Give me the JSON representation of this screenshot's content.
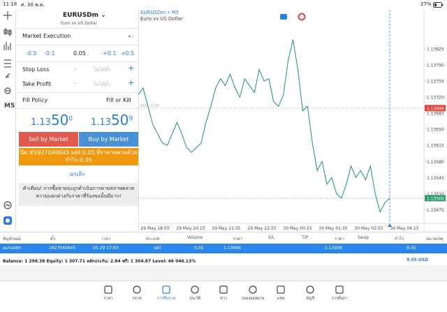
{
  "status": {
    "time": "11:18",
    "date": "ศ. 30 พ.ค.",
    "battery": "27%"
  },
  "toolbar": {
    "timeframe": "M5"
  },
  "order": {
    "symbol": "EURUSDm",
    "description": "Euro vs US Dollar",
    "execution": "Market Execution",
    "volume_steps": [
      "-0.5",
      "-0.1",
      "0.05",
      "+0.1",
      "+0.5"
    ],
    "stop_loss": {
      "label": "Stop Loss",
      "minus": "-",
      "value": "ไม่ได้ตั้ง",
      "plus": "+"
    },
    "take_profit": {
      "label": "Take Profit",
      "minus": "-",
      "value": "ไม่ได้ตั้ง",
      "plus": "+"
    },
    "fill_policy": {
      "label": "Fill Policy",
      "value": "Fill or Kill"
    },
    "bid": {
      "big": "1.13",
      "pips": "50",
      "point": "0"
    },
    "ask": {
      "big": "1.13",
      "pips": "50",
      "point": "9"
    },
    "sell_button": "Sell by Market",
    "buy_button": "Buy by Market",
    "close_button": [
      "ปิด #1927040645 sell 0.05 ที่ราคาตลาดด้วย",
      "กำไร 9.35"
    ],
    "cancel": "ยกเลิก",
    "warning": [
      "คำเตือน! การซื้อขายจะถูกดำเนินการตามสภาพตลาด",
      "ความแตกต่างกับราคาที่ร้องขอนั้นมีมาก!"
    ]
  },
  "chart": {
    "type": "line",
    "title": "EURUSDm • M5",
    "subtitle": "Euro vs US Dollar",
    "color": "#2e9e6a",
    "x_labels": [
      "29 May 18:55",
      "29 May 20:15",
      "29 May 21:35",
      "29 May 22:55",
      "30 May 00:15",
      "30 May 01:35",
      "30 May 02:55",
      "30 May 04:15"
    ],
    "values": [
      1.13725,
      1.1374,
      1.137,
      1.1366,
      1.1364,
      1.1362,
      1.13615,
      1.1364,
      1.13665,
      1.1364,
      1.1361,
      1.136,
      1.1361,
      1.1362,
      1.13665,
      1.137,
      1.1374,
      1.1376,
      1.13745,
      1.1377,
      1.1374,
      1.1372,
      1.1376,
      1.13745,
      1.1373,
      1.1378,
      1.13755,
      1.1376,
      1.1371,
      1.137,
      1.13725,
      1.138,
      1.13845,
      1.1378,
      1.1369,
      1.137,
      1.1362,
      1.1356,
      1.1358,
      1.1353,
      1.13545,
      1.1351,
      1.135,
      1.1353,
      1.1357,
      1.13545,
      1.1356,
      1.1354,
      1.1357,
      1.1351,
      1.1347,
      1.1349,
      1.135
    ],
    "ylim": [
      1.1343,
      1.1391
    ],
    "yticks": [
      {
        "value": 1.13475,
        "label": "1.13475"
      },
      {
        "value": 1.1351,
        "label": "1.13510"
      },
      {
        "value": 1.13545,
        "label": "1.13545"
      },
      {
        "value": 1.1358,
        "label": "1.13580"
      },
      {
        "value": 1.13615,
        "label": "1.13615"
      },
      {
        "value": 1.1365,
        "label": "1.13650"
      },
      {
        "value": 1.13685,
        "label": "1.13685"
      },
      {
        "value": 1.1372,
        "label": "1.13720"
      },
      {
        "value": 1.13755,
        "label": "1.13755"
      },
      {
        "value": 1.1379,
        "label": "1.13790"
      },
      {
        "value": 1.13825,
        "label": "1.13825"
      }
    ],
    "sell_line": {
      "text": "SELL 0.05",
      "value": 1.13696,
      "color": "#e0443a"
    },
    "current_price": {
      "value": 1.135,
      "label": "1.13500",
      "color": "#2e9e6a"
    }
  },
  "table": {
    "headers": [
      "สัญลักษณ์",
      "ตั๋ว",
      "เวลา",
      "ประเภท",
      "Volume",
      "ราคา",
      "S/L",
      "T/P",
      "ราคา",
      "Swap",
      "กำไร",
      "หมายเหตุ"
    ],
    "row": {
      "symbol": "eurusdm",
      "ticket": "1927040645",
      "time": "05.29 17:03",
      "type": "sell",
      "volume": "0.05",
      "open_price": "1.13696",
      "price": "1.13509",
      "profit": "9.35"
    },
    "balance": "Balance: 1 298.36 Equity: 1 307.71 หลักประกัน: 2.84 ฟรี: 1 304.87 Level: 46 046.13%",
    "total": "9.35  USD"
  },
  "tabs": [
    "ราคา",
    "กราฟ",
    "การซื้อขาย",
    "ประวัติ",
    "ข่าว",
    "กล่องจดหมาย",
    "แชท",
    "บัญชี",
    "การตั้งค่า"
  ]
}
